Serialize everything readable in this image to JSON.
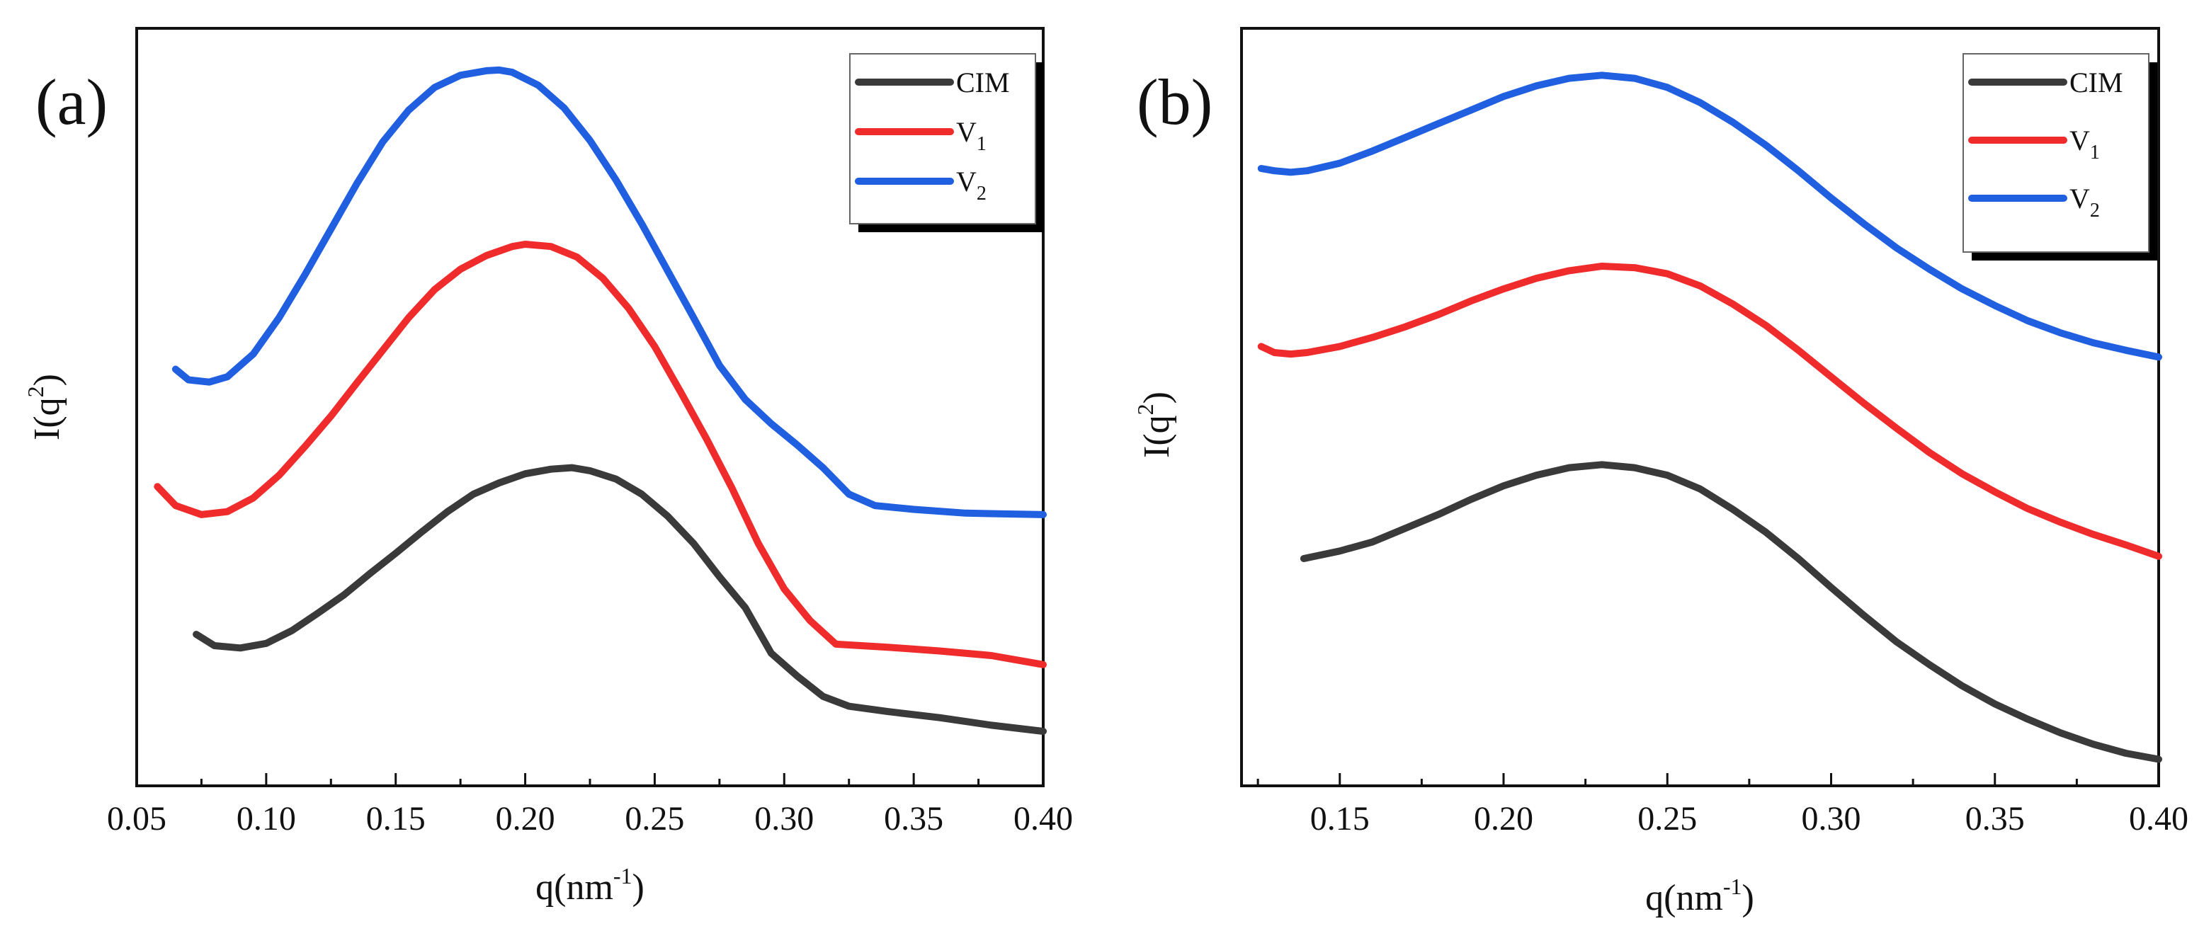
{
  "colors": {
    "CIM": "#3a3a3a",
    "V1": "#ef2b2b",
    "V2": "#1f5fe0"
  },
  "chart_data": [
    {
      "type": "line",
      "panel_label": "(a)",
      "xlabel_main": "q(nm",
      "xlabel_sup": "-1",
      "xlabel_end": ")",
      "ylabel_main": "I(q",
      "ylabel_sup": "2",
      "ylabel_end": ")",
      "xlim": [
        0.05,
        0.4
      ],
      "ylim": [
        0,
        1
      ],
      "x_ticks": [
        "0.05",
        "0.10",
        "0.15",
        "0.20",
        "0.25",
        "0.30",
        "0.35",
        "0.40"
      ],
      "y_ticks_shown": false,
      "legend_position": "top-right",
      "series": [
        {
          "name": "CIM",
          "sub": "",
          "color_key": "CIM",
          "x": [
            0.073,
            0.08,
            0.09,
            0.1,
            0.11,
            0.12,
            0.13,
            0.14,
            0.15,
            0.16,
            0.17,
            0.18,
            0.19,
            0.2,
            0.21,
            0.218,
            0.225,
            0.235,
            0.245,
            0.255,
            0.265,
            0.275,
            0.285,
            0.295,
            0.305,
            0.315,
            0.325,
            0.34,
            0.36,
            0.38,
            0.4
          ],
          "y": [
            0.2,
            0.185,
            0.182,
            0.188,
            0.205,
            0.228,
            0.252,
            0.28,
            0.307,
            0.335,
            0.362,
            0.385,
            0.4,
            0.412,
            0.418,
            0.42,
            0.416,
            0.405,
            0.385,
            0.356,
            0.32,
            0.276,
            0.235,
            0.175,
            0.145,
            0.118,
            0.105,
            0.098,
            0.09,
            0.08,
            0.072
          ]
        },
        {
          "name": "V",
          "sub": "1",
          "color_key": "V1",
          "x": [
            0.058,
            0.065,
            0.075,
            0.085,
            0.095,
            0.105,
            0.115,
            0.125,
            0.135,
            0.145,
            0.155,
            0.165,
            0.175,
            0.185,
            0.195,
            0.2,
            0.21,
            0.22,
            0.23,
            0.24,
            0.25,
            0.26,
            0.27,
            0.28,
            0.29,
            0.3,
            0.31,
            0.32,
            0.34,
            0.36,
            0.38,
            0.4
          ],
          "y": [
            0.395,
            0.37,
            0.358,
            0.362,
            0.38,
            0.41,
            0.448,
            0.488,
            0.532,
            0.575,
            0.618,
            0.655,
            0.682,
            0.7,
            0.712,
            0.715,
            0.712,
            0.698,
            0.67,
            0.63,
            0.58,
            0.52,
            0.458,
            0.392,
            0.32,
            0.26,
            0.218,
            0.187,
            0.183,
            0.178,
            0.172,
            0.16
          ]
        },
        {
          "name": "V",
          "sub": "2",
          "color_key": "V2",
          "x": [
            0.065,
            0.07,
            0.078,
            0.085,
            0.095,
            0.105,
            0.115,
            0.125,
            0.135,
            0.145,
            0.155,
            0.165,
            0.175,
            0.185,
            0.19,
            0.195,
            0.205,
            0.215,
            0.225,
            0.235,
            0.245,
            0.255,
            0.265,
            0.275,
            0.285,
            0.295,
            0.305,
            0.315,
            0.325,
            0.335,
            0.35,
            0.37,
            0.4
          ],
          "y": [
            0.55,
            0.536,
            0.533,
            0.54,
            0.57,
            0.618,
            0.675,
            0.735,
            0.795,
            0.85,
            0.892,
            0.922,
            0.938,
            0.944,
            0.945,
            0.942,
            0.925,
            0.895,
            0.852,
            0.8,
            0.742,
            0.68,
            0.618,
            0.555,
            0.51,
            0.478,
            0.45,
            0.42,
            0.385,
            0.37,
            0.365,
            0.36,
            0.358
          ]
        }
      ]
    },
    {
      "type": "line",
      "panel_label": "(b)",
      "xlabel_main": "q(nm",
      "xlabel_sup": "-1",
      "xlabel_end": ")",
      "ylabel_main": "I(q",
      "ylabel_sup": "2",
      "ylabel_end": ")",
      "xlim": [
        0.12,
        0.4
      ],
      "ylim": [
        0,
        1
      ],
      "x_ticks": [
        "0.15",
        "0.20",
        "0.25",
        "0.30",
        "0.35",
        "0.40"
      ],
      "y_ticks_shown": false,
      "legend_position": "top-right",
      "series": [
        {
          "name": "CIM",
          "sub": "",
          "color_key": "CIM",
          "x": [
            0.139,
            0.15,
            0.16,
            0.17,
            0.18,
            0.19,
            0.2,
            0.21,
            0.22,
            0.23,
            0.24,
            0.25,
            0.26,
            0.27,
            0.28,
            0.29,
            0.3,
            0.31,
            0.32,
            0.33,
            0.34,
            0.35,
            0.36,
            0.37,
            0.38,
            0.39,
            0.4
          ],
          "y": [
            0.3,
            0.31,
            0.322,
            0.34,
            0.358,
            0.378,
            0.396,
            0.41,
            0.42,
            0.424,
            0.42,
            0.41,
            0.392,
            0.365,
            0.335,
            0.3,
            0.262,
            0.225,
            0.19,
            0.16,
            0.132,
            0.108,
            0.088,
            0.07,
            0.055,
            0.043,
            0.035
          ]
        },
        {
          "name": "V",
          "sub": "1",
          "color_key": "V1",
          "x": [
            0.126,
            0.13,
            0.135,
            0.14,
            0.15,
            0.16,
            0.17,
            0.18,
            0.19,
            0.2,
            0.21,
            0.22,
            0.23,
            0.24,
            0.25,
            0.26,
            0.27,
            0.28,
            0.29,
            0.3,
            0.31,
            0.32,
            0.33,
            0.34,
            0.35,
            0.36,
            0.37,
            0.38,
            0.39,
            0.4
          ],
          "y": [
            0.58,
            0.572,
            0.57,
            0.572,
            0.58,
            0.592,
            0.606,
            0.622,
            0.64,
            0.656,
            0.67,
            0.68,
            0.686,
            0.684,
            0.676,
            0.66,
            0.636,
            0.608,
            0.575,
            0.54,
            0.505,
            0.472,
            0.44,
            0.412,
            0.388,
            0.366,
            0.348,
            0.332,
            0.318,
            0.303
          ]
        },
        {
          "name": "V",
          "sub": "2",
          "color_key": "V2",
          "x": [
            0.126,
            0.13,
            0.135,
            0.14,
            0.15,
            0.16,
            0.17,
            0.18,
            0.19,
            0.2,
            0.21,
            0.22,
            0.23,
            0.24,
            0.25,
            0.26,
            0.27,
            0.28,
            0.29,
            0.3,
            0.31,
            0.32,
            0.33,
            0.34,
            0.35,
            0.36,
            0.37,
            0.38,
            0.39,
            0.4
          ],
          "y": [
            0.815,
            0.812,
            0.81,
            0.812,
            0.822,
            0.838,
            0.856,
            0.874,
            0.892,
            0.91,
            0.924,
            0.934,
            0.938,
            0.934,
            0.922,
            0.902,
            0.876,
            0.846,
            0.812,
            0.776,
            0.742,
            0.71,
            0.682,
            0.656,
            0.634,
            0.614,
            0.598,
            0.585,
            0.575,
            0.566
          ]
        }
      ]
    }
  ]
}
